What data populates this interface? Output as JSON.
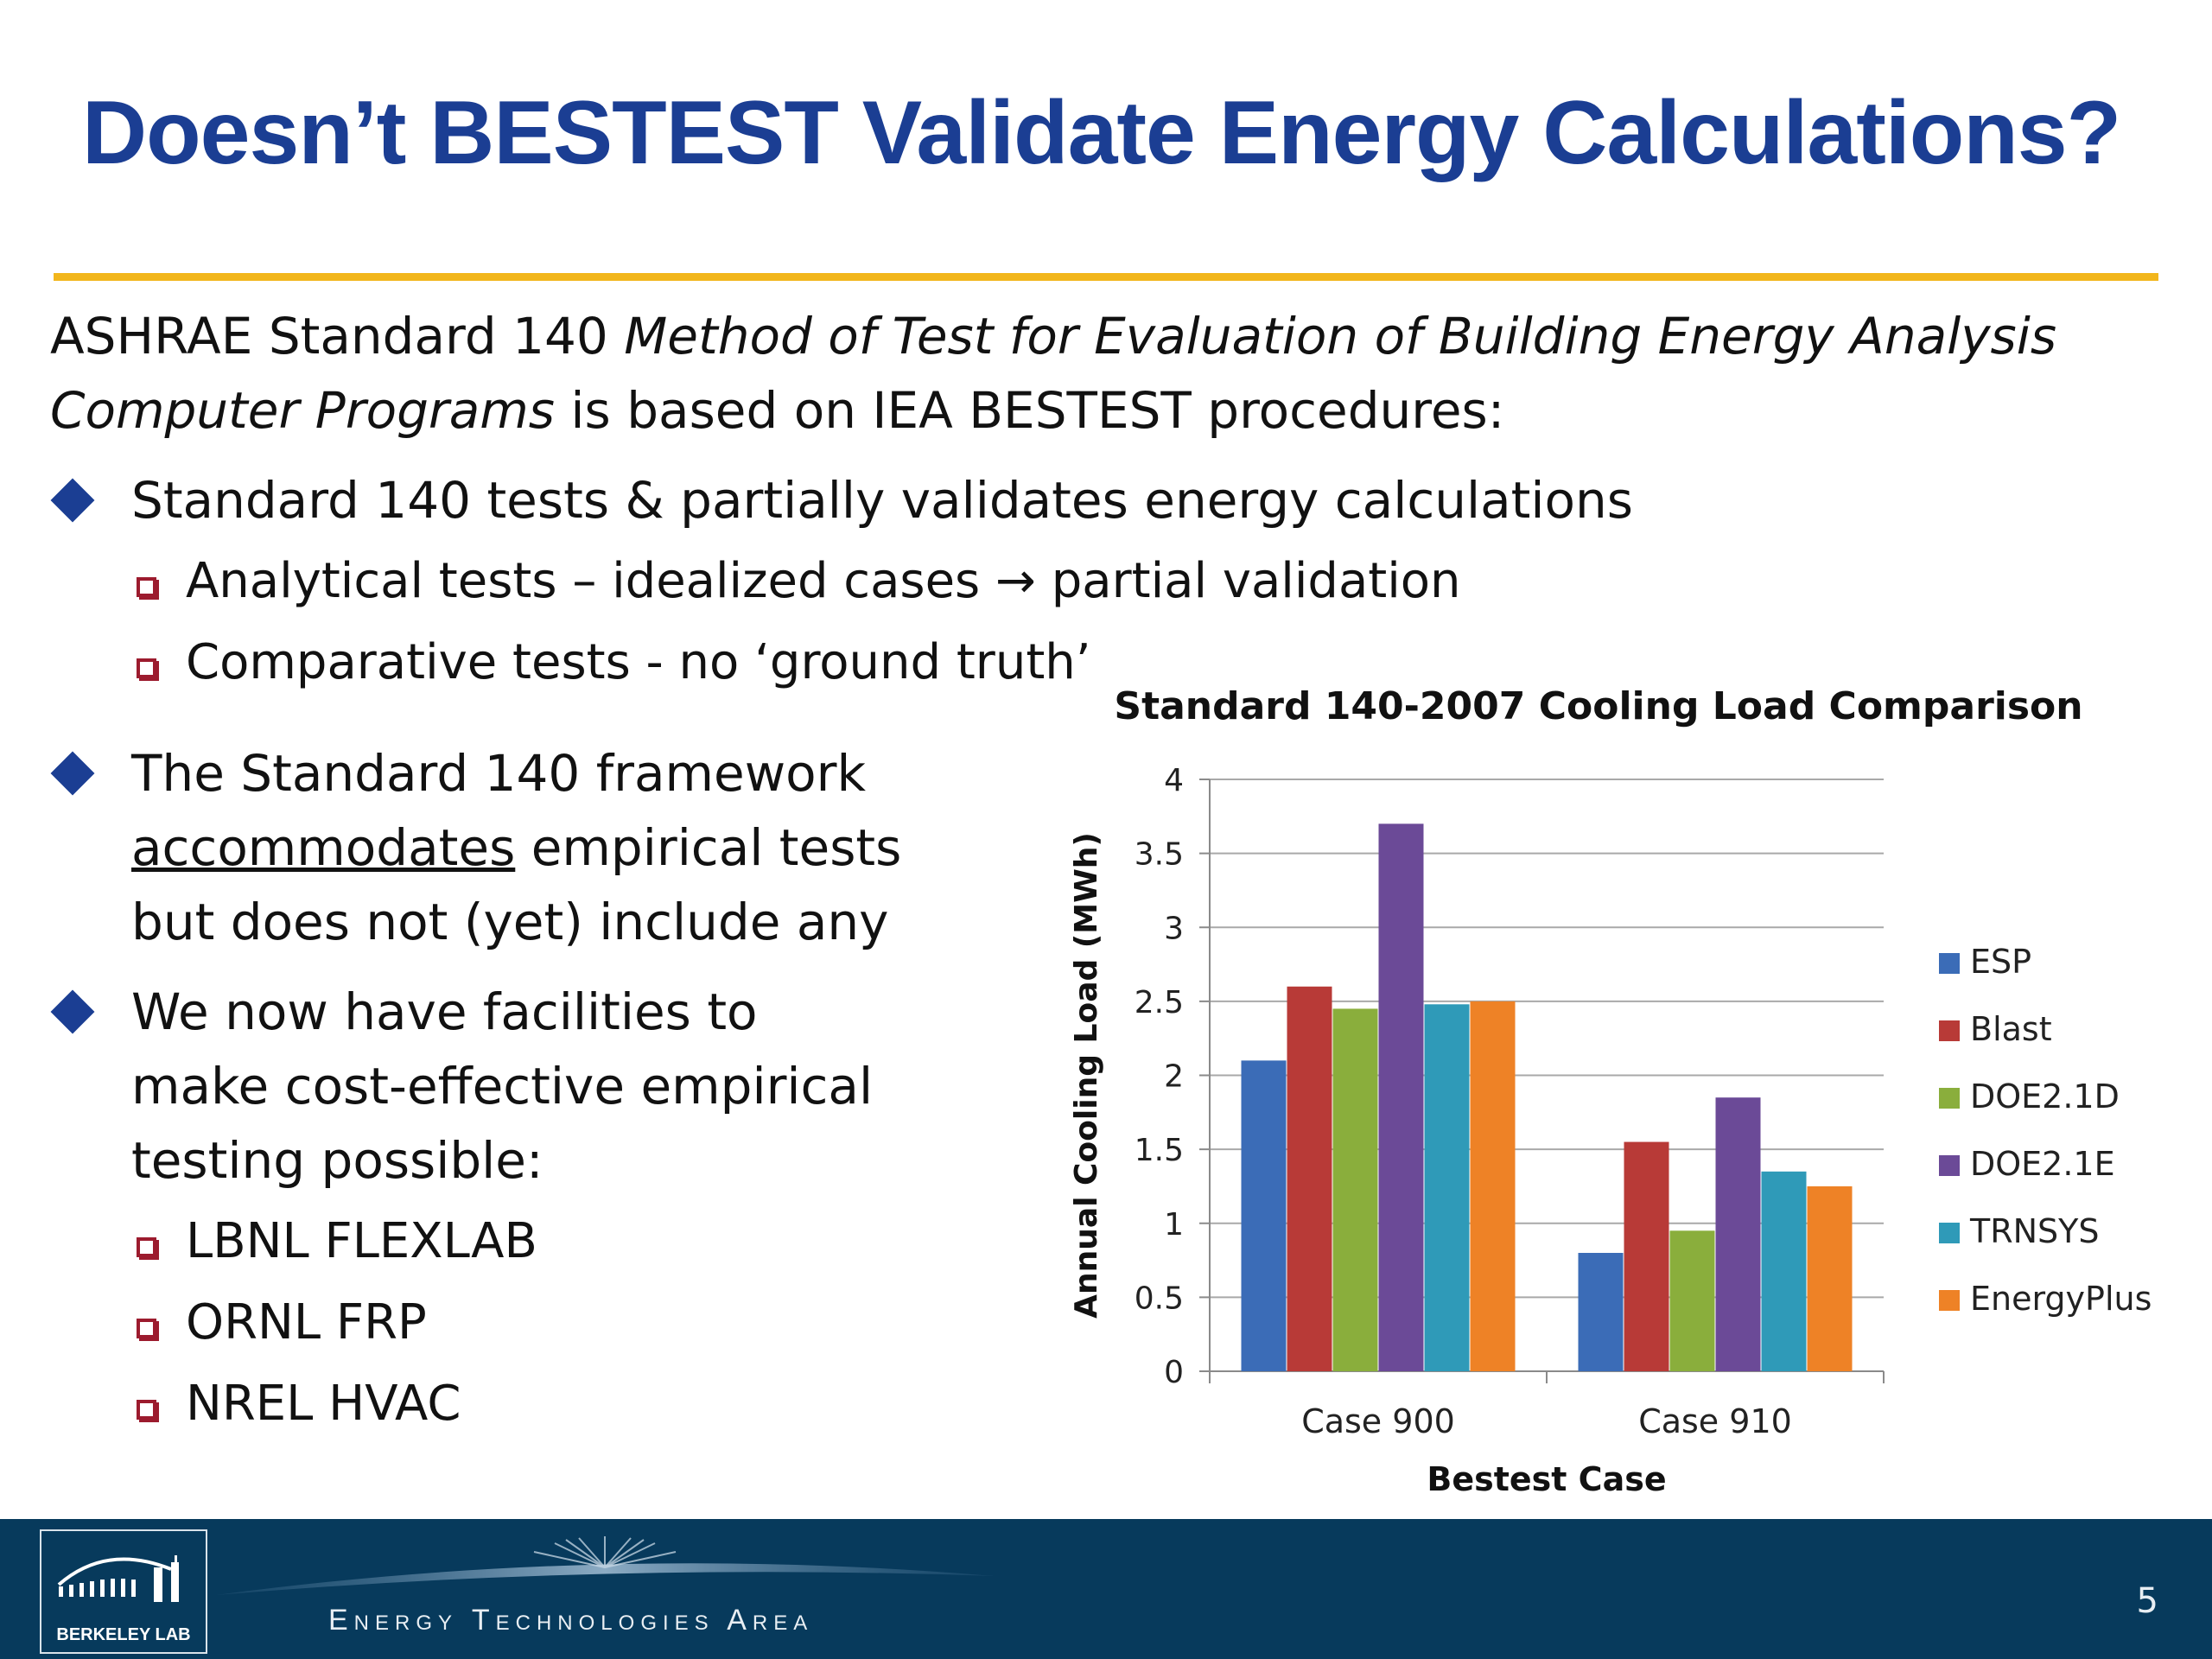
{
  "slide": {
    "title": "Doesn’t BESTEST Validate Energy Calculations?",
    "intro_a": "ASHRAE Standard 140 ",
    "intro_italic_1": "Method of Test for Evaluation of Building Energy Analysis Computer Programs",
    "intro_b": " is based on IEA BESTEST procedures:",
    "bullet1": "Standard 140 tests & partially validates energy calculations",
    "sub1_1": "Analytical tests – idealized cases → partial validation",
    "sub1_2": "Comparative tests - no ‘ground truth’",
    "bullet2_line1": "The Standard 140 framework",
    "bullet2_underlined": "accommodates",
    "bullet2_line2_rest": " empirical tests",
    "bullet2_line3": "but does not (yet) include any",
    "bullet3_line1": "We now have facilities to",
    "bullet3_line2": "make cost-effective empirical",
    "bullet3_line3": "testing possible:",
    "facilities": [
      "LBNL FLEXLAB",
      "ORNL FRP",
      "NREL HVAC"
    ]
  },
  "footer": {
    "logo_text": "BERKELEY LAB",
    "area_label": "Energy Technologies Area",
    "page_number": "5",
    "background": "#073a5c"
  },
  "chart_data": {
    "type": "bar",
    "title": "Standard 140-2007  Cooling Load Comparison",
    "xlabel": "Bestest Case",
    "ylabel": "Annual Cooling Load (MWh)",
    "categories": [
      "Case 900",
      "Case 910"
    ],
    "ylim": [
      0,
      4
    ],
    "yticks": [
      0,
      0.5,
      1,
      1.5,
      2,
      2.5,
      3,
      3.5,
      4
    ],
    "ytick_labels": [
      "0",
      "0.5",
      "1",
      "1.5",
      "2",
      "2.5",
      "3",
      "3.5",
      "4"
    ],
    "grid": true,
    "legend_position": "right",
    "series": [
      {
        "name": "ESP",
        "values": [
          2.1,
          0.8
        ],
        "color": "#3b6cb7"
      },
      {
        "name": "Blast",
        "values": [
          2.6,
          1.55
        ],
        "color": "#b83a37"
      },
      {
        "name": "DOE2.1D",
        "values": [
          2.45,
          0.95
        ],
        "color": "#8aae3c"
      },
      {
        "name": "DOE2.1E",
        "values": [
          3.7,
          1.85
        ],
        "color": "#6b4a97"
      },
      {
        "name": "TRNSYS",
        "values": [
          2.48,
          1.35
        ],
        "color": "#2f9ab8"
      },
      {
        "name": "EnergyPlus",
        "values": [
          2.5,
          1.25
        ],
        "color": "#ee8226"
      }
    ]
  }
}
